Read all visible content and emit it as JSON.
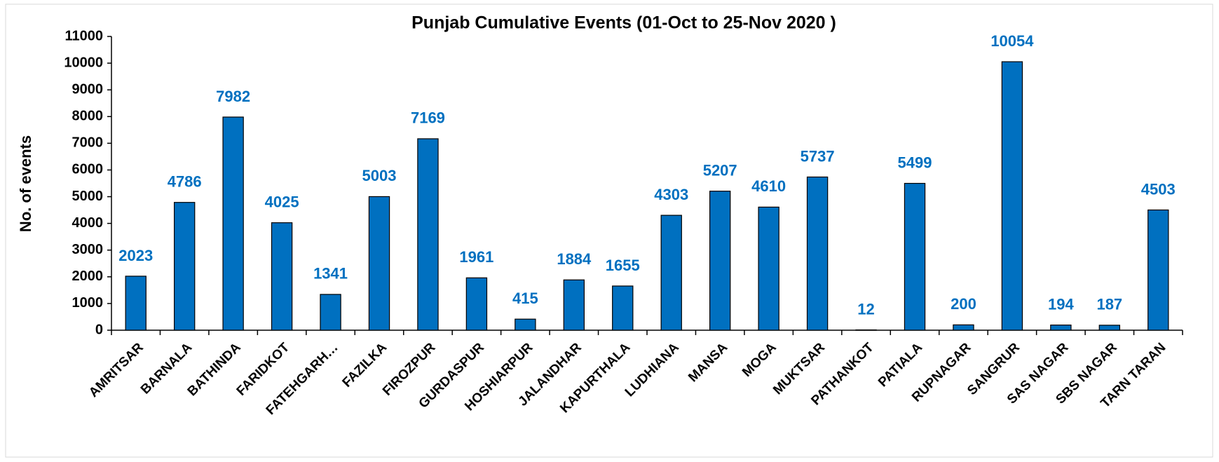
{
  "chart_data": {
    "type": "bar",
    "title": "Punjab Cumulative Events (01-Oct to 25-Nov 2020 )",
    "y_label": "No. of events",
    "categories": [
      "AMRITSAR",
      "BARNALA",
      "BATHINDA",
      "FARIDKOT",
      "FATEHGARH…",
      "FAZILKA",
      "FIROZPUR",
      "GURDASPUR",
      "HOSHIARPUR",
      "JALANDHAR",
      "KAPURTHALA",
      "LUDHIANA",
      "MANSA",
      "MOGA",
      "MUKTSAR",
      "PATHANKOT",
      "PATIALA",
      "RUPNAGAR",
      "SANGRUR",
      "SAS NAGAR",
      "SBS NAGAR",
      "TARN TARAN"
    ],
    "values": [
      2023,
      4786,
      7982,
      4025,
      1341,
      5003,
      7169,
      1961,
      415,
      1884,
      1655,
      4303,
      5207,
      4610,
      5737,
      12,
      5499,
      200,
      10054,
      194,
      187,
      4503
    ],
    "color": "#0070c0",
    "label_color": "#0070c0",
    "ylim": [
      0,
      11000
    ],
    "yticks": [
      0,
      1000,
      2000,
      3000,
      4000,
      5000,
      6000,
      7000,
      8000,
      9000,
      10000,
      11000
    ],
    "grid": false
  }
}
